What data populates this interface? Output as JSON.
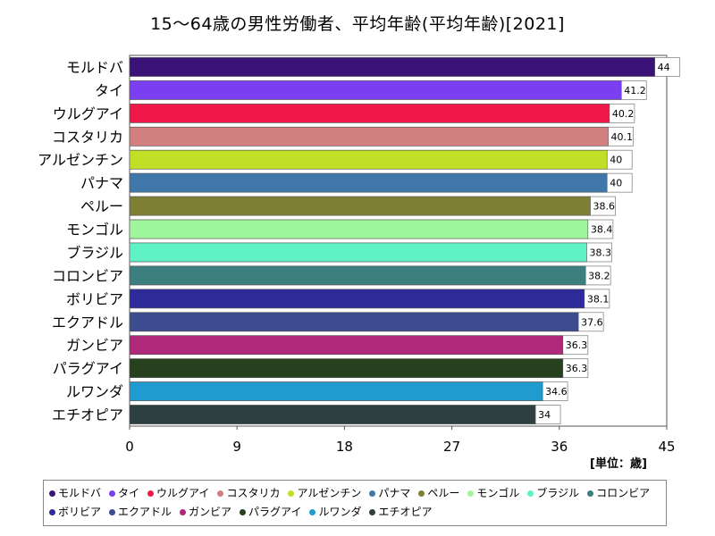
{
  "chart_data": {
    "type": "bar",
    "orientation": "horizontal",
    "title": "15～64歳の男性労働者、平均年齢(平均年齢)[2021]",
    "unit_label": "[単位：歳]",
    "categories": [
      "モルドバ",
      "タイ",
      "ウルグアイ",
      "コスタリカ",
      "アルゼンチン",
      "パナマ",
      "ペルー",
      "モンゴル",
      "ブラジル",
      "コロンビア",
      "ボリビア",
      "エクアドル",
      "ガンビア",
      "パラグアイ",
      "ルワンダ",
      "エチオピア"
    ],
    "values": [
      44,
      41.2,
      40.2,
      40.1,
      40,
      40,
      38.6,
      38.4,
      38.3,
      38.2,
      38.1,
      37.6,
      36.3,
      36.3,
      34.6,
      34
    ],
    "value_labels": [
      "44",
      "41.2",
      "40.2",
      "40.1",
      "40",
      "40",
      "38.6",
      "38.4",
      "38.3",
      "38.2",
      "38.1",
      "37.6",
      "36.3",
      "36.3",
      "34.6",
      "34"
    ],
    "colors": [
      "#3b1278",
      "#7b3ff2",
      "#ef1848",
      "#d27f80",
      "#c2df27",
      "#3f77aa",
      "#7f7f35",
      "#9ff59c",
      "#5ef2c5",
      "#3b7f7e",
      "#2e2a9a",
      "#3c4c8e",
      "#b0287a",
      "#27401d",
      "#1f9bcf",
      "#2d3f3e"
    ],
    "xticks": [
      "0",
      "9",
      "18",
      "27",
      "36",
      "45"
    ],
    "xlim": [
      0,
      45
    ],
    "grid": false,
    "legend_position": "bottom"
  }
}
